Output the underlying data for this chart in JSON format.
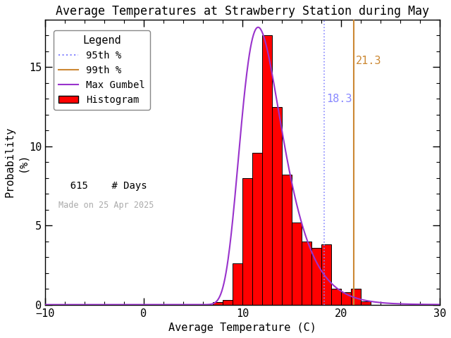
{
  "title": "Average Temperatures at Strawberry Station during May",
  "xlabel": "Average Temperature (C)",
  "ylabel1": "Probability",
  "ylabel2": "(%)",
  "xlim": [
    -10,
    30
  ],
  "ylim": [
    0,
    18
  ],
  "yticks": [
    0,
    5,
    10,
    15
  ],
  "xticks": [
    -10,
    0,
    10,
    20,
    30
  ],
  "background_color": "#ffffff",
  "n_days": 615,
  "percentile_95": 18.3,
  "percentile_99": 21.3,
  "percentile_95_color": "#8888ff",
  "percentile_99_color": "#cc8833",
  "gumbel_color": "#9933cc",
  "hist_color": "#ff0000",
  "hist_edgecolor": "#000000",
  "made_on_text": "Made on 25 Apr 2025",
  "made_on_color": "#aaaaaa",
  "bin_edges": [
    7,
    8,
    9,
    10,
    11,
    12,
    13,
    14,
    15,
    16,
    17,
    18,
    19,
    20,
    21,
    22
  ],
  "bin_heights": [
    0.15,
    0.3,
    2.6,
    8.0,
    9.6,
    17.0,
    12.5,
    8.2,
    5.2,
    4.0,
    3.6,
    3.8,
    1.0,
    0.8,
    1.0,
    0.2
  ],
  "gumbel_mu": 11.6,
  "gumbel_beta": 2.1,
  "title_fontsize": 12,
  "label_fontsize": 11,
  "tick_fontsize": 11,
  "legend_fontsize": 10,
  "legend_title_fontsize": 11
}
